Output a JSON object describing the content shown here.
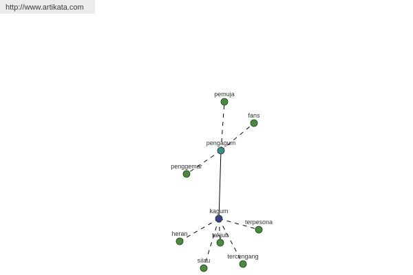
{
  "header": {
    "url_text": "http://www.artikata.com"
  },
  "graph": {
    "colors": {
      "center": "#3b3f8c",
      "hub": "#3f8c8c",
      "leaf": "#4b8a3e",
      "node_stroke": "#1d3d1d",
      "edge": "#000000"
    },
    "nodes": [
      {
        "id": "kagum",
        "label": "kagum",
        "role": "center"
      },
      {
        "id": "pengagum",
        "label": "pengagum",
        "role": "hub"
      },
      {
        "id": "pemuja",
        "label": "pemuja",
        "role": "leaf"
      },
      {
        "id": "fans",
        "label": "fans",
        "role": "leaf"
      },
      {
        "id": "penggemar",
        "label": "penggemar",
        "role": "leaf"
      },
      {
        "id": "terpesona",
        "label": "terpesona",
        "role": "leaf"
      },
      {
        "id": "heran",
        "label": "heran",
        "role": "leaf"
      },
      {
        "id": "takjub",
        "label": "takjub",
        "role": "leaf"
      },
      {
        "id": "silau",
        "label": "silau",
        "role": "leaf"
      },
      {
        "id": "tercengang",
        "label": "tercengang",
        "role": "leaf"
      }
    ],
    "edges": [
      {
        "from": "kagum",
        "to": "pengagum",
        "style": "solid"
      },
      {
        "from": "pengagum",
        "to": "pemuja",
        "style": "dashed"
      },
      {
        "from": "pengagum",
        "to": "fans",
        "style": "dashed"
      },
      {
        "from": "pengagum",
        "to": "penggemar",
        "style": "dashed"
      },
      {
        "from": "kagum",
        "to": "terpesona",
        "style": "dashed"
      },
      {
        "from": "kagum",
        "to": "heran",
        "style": "dashed"
      },
      {
        "from": "kagum",
        "to": "takjub",
        "style": "dashed"
      },
      {
        "from": "kagum",
        "to": "silau",
        "style": "dashed"
      },
      {
        "from": "kagum",
        "to": "tercengang",
        "style": "dashed"
      }
    ]
  }
}
